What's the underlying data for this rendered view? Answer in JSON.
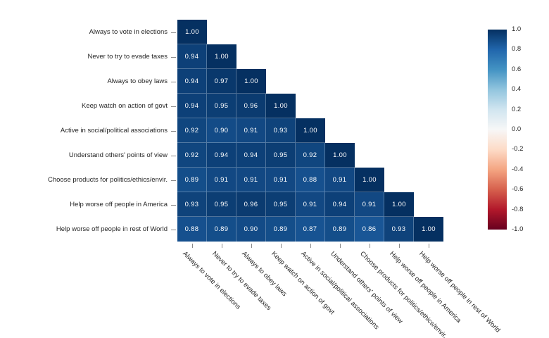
{
  "figure": {
    "background": "#ffffff",
    "text_color": "#262626",
    "tick_color": "#8a8a8a"
  },
  "chart_data": {
    "type": "heatmap",
    "subtype": "correlation-matrix-lower-triangle",
    "title": "",
    "xlabel": "",
    "ylabel": "",
    "grid": false,
    "labels": [
      "Always to vote in elections",
      "Never to try to evade taxes",
      "Always to obey laws",
      "Keep watch on action of govt",
      "Active in social/political associations",
      "Understand others' points of view",
      "Choose products for politics/ethics/envir.",
      "Help worse off people in America",
      "Help worse off people in rest of World"
    ],
    "matrix": [
      [
        1.0
      ],
      [
        0.94,
        1.0
      ],
      [
        0.94,
        0.97,
        1.0
      ],
      [
        0.94,
        0.95,
        0.96,
        1.0
      ],
      [
        0.92,
        0.9,
        0.91,
        0.93,
        1.0
      ],
      [
        0.92,
        0.94,
        0.94,
        0.95,
        0.92,
        1.0
      ],
      [
        0.89,
        0.91,
        0.91,
        0.91,
        0.88,
        0.91,
        1.0
      ],
      [
        0.93,
        0.95,
        0.96,
        0.95,
        0.91,
        0.94,
        0.91,
        1.0
      ],
      [
        0.88,
        0.89,
        0.9,
        0.89,
        0.87,
        0.89,
        0.86,
        0.93,
        1.0
      ]
    ],
    "value_decimals": 2,
    "cell_text_color": "#ffffff",
    "cell_grid_line_color": "rgba(255,255,255,0.28)",
    "colormap": {
      "name": "RdBu",
      "domain": [
        -1,
        1
      ],
      "stops": [
        "#67001f",
        "#b2182b",
        "#d6604d",
        "#f4a582",
        "#fddbc7",
        "#f7f7f7",
        "#d1e5f0",
        "#92c5de",
        "#4393c3",
        "#2166ac",
        "#053061"
      ]
    },
    "colorbar": {
      "position": "right",
      "ticks": [
        "1.0",
        "0.8",
        "0.6",
        "0.4",
        "0.2",
        "0.0",
        "-0.2",
        "-0.4",
        "-0.6",
        "-0.8",
        "-1.0"
      ]
    }
  }
}
